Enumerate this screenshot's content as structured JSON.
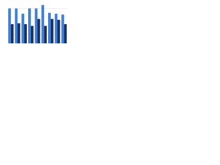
{
  "chart_data": {
    "type": "bar",
    "categories": [
      null,
      null,
      null,
      null,
      null,
      null,
      null,
      null,
      null
    ],
    "series": [
      {
        "color": "#3d7fdb",
        "values": [
          80,
          80,
          68,
          80,
          80,
          88,
          70,
          68,
          66
        ]
      },
      {
        "color": "#1b2f5c",
        "values": [
          44,
          46,
          44,
          40,
          56,
          40,
          56,
          54,
          44
        ]
      }
    ],
    "ylim": [
      0,
      90
    ],
    "yticks": [
      0,
      20,
      40,
      60,
      80
    ],
    "grid": true
  }
}
